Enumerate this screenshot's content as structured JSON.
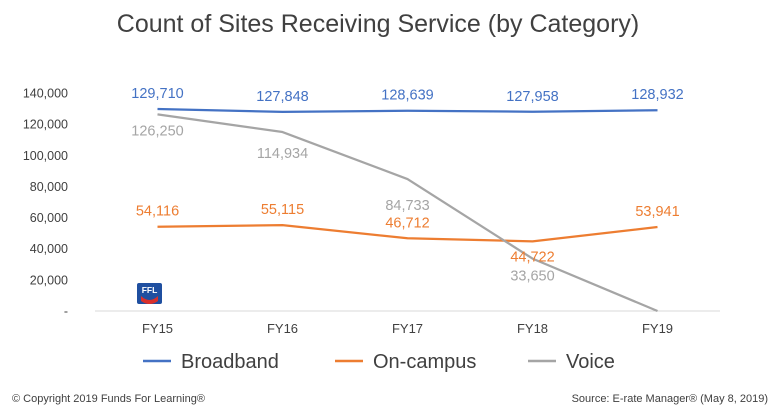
{
  "chart_data": {
    "type": "line",
    "title": "Count of Sites Receiving Service (by Category)",
    "categories": [
      "FY15",
      "FY16",
      "FY17",
      "FY18",
      "FY19"
    ],
    "ylim": [
      0,
      140000
    ],
    "yticks": [
      0,
      20000,
      40000,
      60000,
      80000,
      100000,
      120000,
      140000
    ],
    "ytick_labels": [
      "-",
      "20,000",
      "40,000",
      "60,000",
      "80,000",
      "100,000",
      "120,000",
      "140,000"
    ],
    "grid": false,
    "legend_position": "bottom",
    "series": [
      {
        "name": "Broadband",
        "color": "#4472c4",
        "values": [
          129710,
          127848,
          128639,
          127958,
          128932
        ],
        "labels": [
          "129,710",
          "127,848",
          "128,639",
          "127,958",
          "128,932"
        ]
      },
      {
        "name": "On-campus",
        "color": "#ed7d31",
        "values": [
          54116,
          55115,
          46712,
          44722,
          53941
        ],
        "labels": [
          "54,116",
          "55,115",
          "46,712",
          "44,722",
          "53,941"
        ]
      },
      {
        "name": "Voice",
        "color": "#a5a5a5",
        "values": [
          126250,
          114934,
          84733,
          33650,
          0
        ],
        "labels": [
          "126,250",
          "114,934",
          "84,733",
          "33,650",
          ""
        ]
      }
    ]
  },
  "footer": {
    "copyright": "© Copyright 2019 Funds For Learning®",
    "source": "Source: E-rate Manager® (May 8, 2019)"
  },
  "logo": {
    "text": "FFL",
    "color_top": "#1f4fa0",
    "color_accent": "#d9302c"
  }
}
